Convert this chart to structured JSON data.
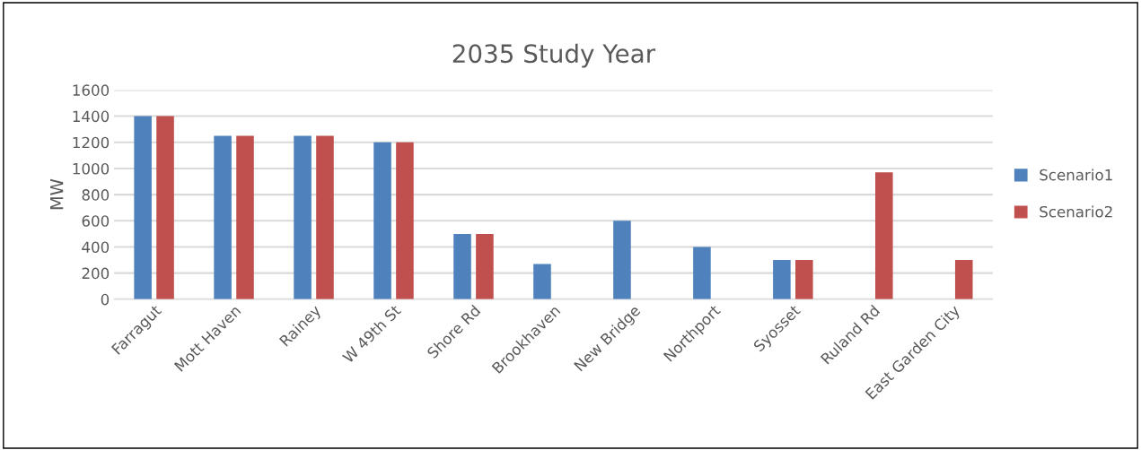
{
  "chart_data": {
    "type": "bar",
    "title": "2035 Study Year",
    "ylabel": "MW",
    "categories": [
      "Farragut",
      "Mott Haven",
      "Rainey",
      "W 49th St",
      "Shore Rd",
      "Brookhaven",
      "New Bridge",
      "Northport",
      "Syosset",
      "Ruland Rd",
      "East Garden City"
    ],
    "series": [
      {
        "name": "Scenario1",
        "color": "#4f81bd",
        "values": [
          1400,
          1250,
          1250,
          1200,
          500,
          270,
          600,
          400,
          300,
          null,
          null
        ]
      },
      {
        "name": "Scenario2",
        "color": "#c0504d",
        "values": [
          1400,
          1250,
          1250,
          1200,
          500,
          null,
          null,
          null,
          300,
          970,
          300
        ]
      }
    ],
    "ylim": [
      0,
      1600
    ],
    "yticks": [
      0,
      200,
      400,
      600,
      800,
      1000,
      1200,
      1400,
      1600
    ],
    "grid": "y",
    "legend": "right"
  }
}
